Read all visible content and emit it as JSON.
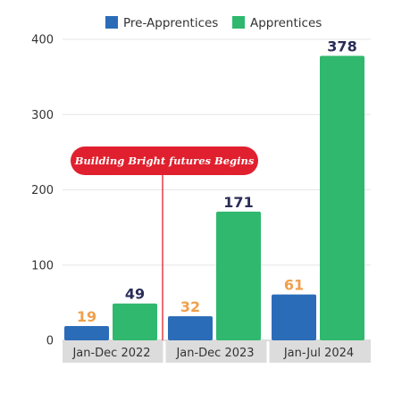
{
  "chart_data": {
    "type": "bar",
    "categories": [
      "Jan-Dec 2022",
      "Jan-Dec 2023",
      "Jan-Jul 2024"
    ],
    "series": [
      {
        "name": "Pre-Apprentices",
        "values": [
          19,
          32,
          61
        ],
        "color": "#2b6cb8",
        "label_color": "#f0a04b"
      },
      {
        "name": "Apprentices",
        "values": [
          49,
          171,
          378
        ],
        "color": "#2fb86e",
        "label_color": "#2a2d57"
      }
    ],
    "yticks": [
      0,
      100,
      200,
      300,
      400
    ],
    "ylim": [
      0,
      400
    ],
    "grid": true,
    "legend_position": "top",
    "annotation": {
      "text": "Building Bright futures Begins",
      "color": "#e0202e"
    },
    "category_band_color": "#dcdcdc"
  }
}
